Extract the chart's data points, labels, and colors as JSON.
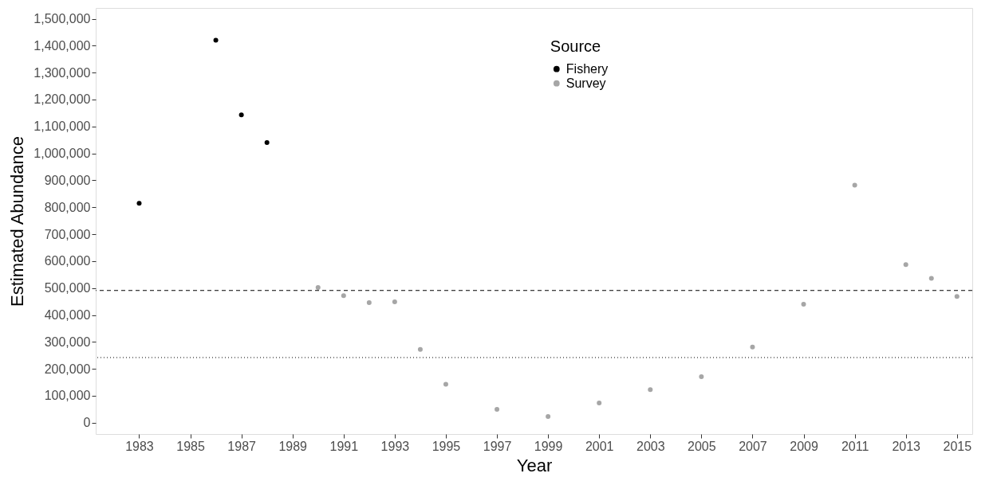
{
  "chart_data": {
    "type": "scatter",
    "xlabel": "Year",
    "ylabel": "Estimated Abundance",
    "legend_title": "Source",
    "series": [
      {
        "name": "Fishery",
        "color": "#000000",
        "x": [
          1983,
          1986,
          1987,
          1988
        ],
        "values": [
          815000,
          1420000,
          1143000,
          1040000
        ]
      },
      {
        "name": "Survey",
        "color": "#a6a6a6",
        "x": [
          1990,
          1991,
          1992,
          1993,
          1994,
          1995,
          1997,
          1999,
          2001,
          2003,
          2005,
          2007,
          2009,
          2011,
          2013,
          2014,
          2015
        ],
        "values": [
          502000,
          472000,
          446000,
          449000,
          272000,
          143000,
          50000,
          23000,
          73000,
          123000,
          171000,
          281000,
          440000,
          882000,
          587000,
          536000,
          469000
        ]
      }
    ],
    "xlim": [
      1981.3,
      2015.6
    ],
    "xticks": [
      1983,
      1985,
      1987,
      1989,
      1991,
      1993,
      1995,
      1997,
      1999,
      2001,
      2003,
      2005,
      2007,
      2009,
      2011,
      2013,
      2015
    ],
    "ylim": [
      -42000,
      1540000
    ],
    "yticks": [
      0,
      {
        "value": 100000,
        "label": "100,000"
      },
      {
        "value": 200000,
        "label": "200,000"
      },
      {
        "value": 300000,
        "label": "300,000"
      },
      {
        "value": 400000,
        "label": "400,000"
      },
      {
        "value": 500000,
        "label": "500,000"
      },
      {
        "value": 600000,
        "label": "600,000"
      },
      {
        "value": 700000,
        "label": "700,000"
      },
      {
        "value": 800000,
        "label": "800,000"
      },
      {
        "value": 900000,
        "label": "900,000"
      },
      {
        "value": 1000000,
        "label": "1,000,000"
      },
      {
        "value": 1100000,
        "label": "1,100,000"
      },
      {
        "value": 1200000,
        "label": "1,200,000"
      },
      {
        "value": 1300000,
        "label": "1,300,000"
      },
      {
        "value": 1400000,
        "label": "1,400,000"
      },
      {
        "value": 1500000,
        "label": "1,500,000"
      }
    ],
    "ref_lines": [
      {
        "axis": "y",
        "value": 491000,
        "color": "#000000",
        "line_style": "dashed"
      },
      {
        "axis": "y",
        "value": 242000,
        "color": "#000000",
        "line_style": "dotted"
      }
    ],
    "grid": false,
    "legend": "top",
    "marker": "circle"
  }
}
